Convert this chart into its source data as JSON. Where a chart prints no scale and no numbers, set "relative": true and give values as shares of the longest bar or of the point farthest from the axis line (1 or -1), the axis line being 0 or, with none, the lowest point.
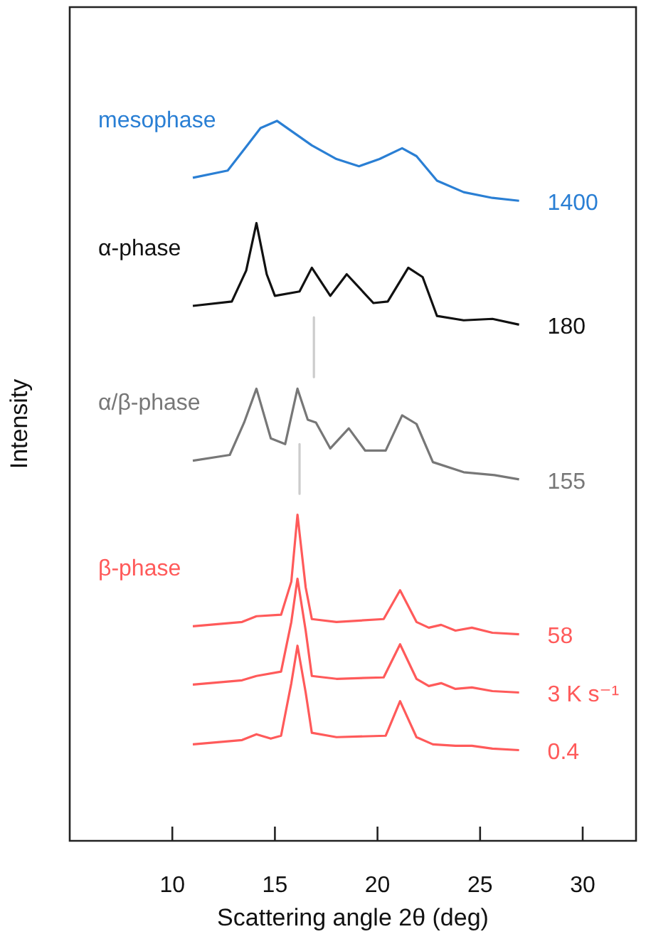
{
  "chart_data": {
    "type": "line",
    "xlabel": "Scattering angle 2θ (deg)",
    "ylabel": "Intensity",
    "relative": true,
    "xlim": [
      5,
      32.6
    ],
    "xticks": [
      10,
      15,
      20,
      25,
      30
    ],
    "grid": false,
    "legend": false,
    "tick_labels": "x",
    "marker": "none",
    "line_style": "solid",
    "series": [
      {
        "name": "mesophase",
        "color": "#2a7fd4",
        "x": [
          11.0,
          12.7,
          13.6,
          14.3,
          15.1,
          15.9,
          16.8,
          18.0,
          19.1,
          20.1,
          21.2,
          21.9,
          22.9,
          24.2,
          25.6,
          26.9
        ],
        "values": [
          0.921,
          0.931,
          0.964,
          0.99,
          1.0,
          0.984,
          0.966,
          0.947,
          0.937,
          0.947,
          0.962,
          0.951,
          0.917,
          0.901,
          0.893,
          0.889
        ]
      },
      {
        "name": "α-phase",
        "color": "#111111",
        "x": [
          11.0,
          12.9,
          13.6,
          14.1,
          14.6,
          15.0,
          16.2,
          16.8,
          17.7,
          18.5,
          19.8,
          20.5,
          21.5,
          22.2,
          22.9,
          24.2,
          25.6,
          26.9
        ],
        "values": [
          0.743,
          0.749,
          0.792,
          0.858,
          0.787,
          0.757,
          0.763,
          0.796,
          0.757,
          0.787,
          0.747,
          0.749,
          0.796,
          0.783,
          0.729,
          0.723,
          0.725,
          0.717
        ]
      },
      {
        "name": "α/β-phase",
        "color": "#777777",
        "x": [
          11.0,
          12.8,
          13.5,
          14.1,
          14.8,
          15.5,
          16.1,
          16.6,
          17.0,
          17.7,
          18.6,
          19.4,
          20.4,
          21.2,
          21.9,
          22.7,
          24.2,
          25.7,
          26.9
        ],
        "values": [
          0.528,
          0.536,
          0.581,
          0.628,
          0.559,
          0.551,
          0.628,
          0.585,
          0.581,
          0.545,
          0.573,
          0.542,
          0.542,
          0.591,
          0.579,
          0.526,
          0.512,
          0.508,
          0.502
        ]
      },
      {
        "name": "β-phase",
        "color": "#ff5a5a",
        "x": [
          11.0,
          13.4,
          14.1,
          15.3,
          15.8,
          16.1,
          16.5,
          16.8,
          18.0,
          20.3,
          21.1,
          21.9,
          22.5,
          23.1,
          23.8,
          24.6,
          25.6,
          26.9
        ],
        "values": [
          0.298,
          0.304,
          0.312,
          0.314,
          0.36,
          0.453,
          0.352,
          0.308,
          0.304,
          0.308,
          0.348,
          0.304,
          0.296,
          0.3,
          0.292,
          0.296,
          0.289,
          0.287
        ]
      },
      {
        "color": "#ff5a5a",
        "x": [
          11.0,
          13.4,
          14.1,
          15.3,
          15.8,
          16.1,
          16.5,
          16.8,
          18.0,
          20.3,
          21.1,
          21.9,
          22.5,
          23.1,
          23.8,
          24.6,
          25.6,
          26.9
        ],
        "values": [
          0.217,
          0.223,
          0.229,
          0.235,
          0.304,
          0.364,
          0.292,
          0.229,
          0.225,
          0.227,
          0.273,
          0.225,
          0.215,
          0.219,
          0.211,
          0.213,
          0.208,
          0.206
        ]
      },
      {
        "color": "#ff5a5a",
        "x": [
          11.0,
          13.4,
          14.1,
          14.8,
          15.3,
          15.8,
          16.1,
          16.5,
          16.8,
          18.0,
          20.4,
          21.1,
          21.9,
          22.7,
          23.8,
          24.6,
          25.6,
          26.9
        ],
        "values": [
          0.134,
          0.14,
          0.148,
          0.142,
          0.146,
          0.219,
          0.271,
          0.206,
          0.15,
          0.144,
          0.146,
          0.194,
          0.144,
          0.134,
          0.132,
          0.132,
          0.128,
          0.126
        ]
      },
      {
        "color": "#cccccc",
        "x": [
          16.9,
          16.9
        ],
        "values": [
          0.727,
          0.644
        ]
      },
      {
        "color": "#cccccc",
        "x": [
          16.2,
          16.2
        ],
        "values": [
          0.551,
          0.482
        ]
      }
    ],
    "annotations": [
      "1400",
      "180",
      "155",
      "58",
      "3 K s⁻¹",
      "0.4"
    ]
  }
}
